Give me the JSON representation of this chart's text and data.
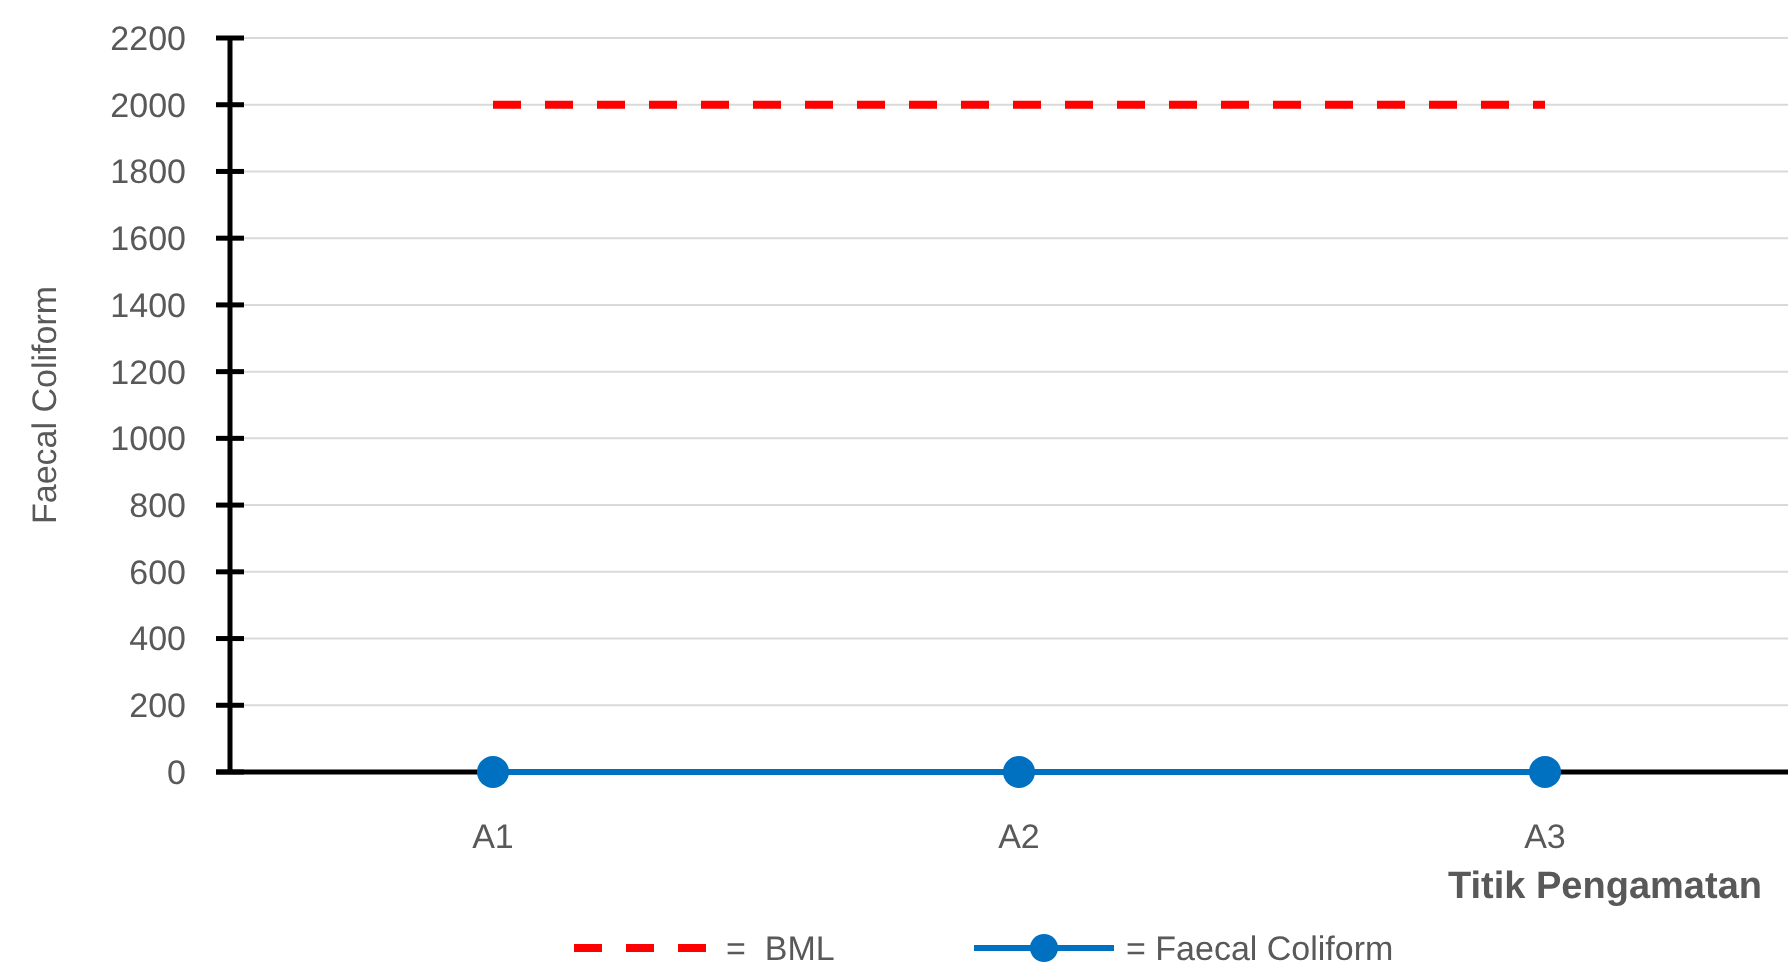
{
  "chart_data": {
    "type": "line",
    "ylabel": "Faecal Coliform",
    "xlabel": "Titik Pengamatan",
    "categories": [
      "A1",
      "A2",
      "A3"
    ],
    "series": [
      {
        "name": "=  BML",
        "color": "#ff0000",
        "values": [
          2000,
          2000,
          2000
        ],
        "line_style": "dashed",
        "marker": "none"
      },
      {
        "name": "= Faecal Coliform",
        "color": "#0070c0",
        "values": [
          0,
          0,
          0
        ],
        "line_style": "solid",
        "marker": "circle"
      }
    ],
    "ylim": [
      0,
      2200
    ],
    "yticks": [
      0,
      200,
      400,
      600,
      800,
      1000,
      1200,
      1400,
      1600,
      1800,
      2000,
      2200
    ],
    "grid": "y",
    "legend": "bottom"
  }
}
